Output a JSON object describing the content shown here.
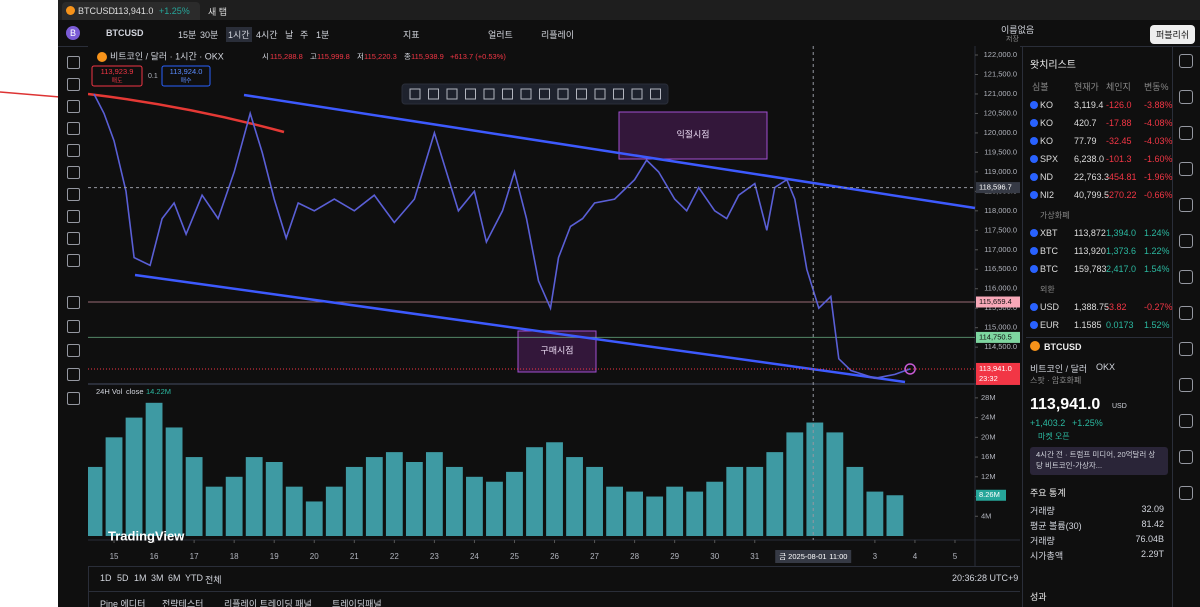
{
  "tab": {
    "symbol": "BTCUSD",
    "price": "113,941.0",
    "change": "+1.25%",
    "new_tab": "새 탭"
  },
  "toolbar": {
    "avatar": "B",
    "symbol": "BTCUSD",
    "intervals": [
      "15분",
      "30분",
      "1시간",
      "4시간",
      "날",
      "주",
      "1분"
    ],
    "indicators": "지표",
    "alerts": "얼러트",
    "replay": "리플레이",
    "layout": "이름없음",
    "save": "저장",
    "publish": "퍼블리쉬"
  },
  "chart_data": [
    {
      "type": "line",
      "title": "비트코인 / 달러 · 1시간 · OKX",
      "ohlc": {
        "o_label": "시",
        "o": "115,288.8",
        "h_label": "고",
        "h": "115,999.8",
        "l_label": "저",
        "l": "115,220.3",
        "c_label": "종",
        "c": "115,938.9",
        "change": "+613.7 (+0.53%)"
      },
      "sell": {
        "price": "113,923.9",
        "label": "매도"
      },
      "spread": "0.1",
      "buy": {
        "price": "113,924.0",
        "label": "매수"
      },
      "color": "#5a5fd6",
      "x": [
        -0.5,
        -0.25,
        0,
        0.3,
        0.5,
        0.9,
        1.2,
        1.5,
        1.8,
        2.2,
        2.6,
        3,
        3.4,
        3.7,
        4,
        4.3,
        4.6,
        5,
        5.5,
        6,
        6.5,
        7,
        7.5,
        8,
        8.3,
        8.6,
        9,
        9.3,
        9.7,
        10,
        10.3,
        10.6,
        10.9,
        11.1,
        11.4,
        11.7,
        12,
        12.5,
        13,
        13.3,
        13.6,
        14,
        14.3,
        14.6,
        15,
        15.3,
        15.6,
        16,
        16.3,
        16.5,
        16.8,
        17,
        17.3,
        17.6,
        17.9,
        18.1,
        18.4,
        18.7,
        19,
        19.5,
        19.88
      ],
      "values": [
        121000,
        120500,
        119800,
        118500,
        116800,
        116600,
        117800,
        118200,
        117400,
        118400,
        117800,
        119000,
        120500,
        119500,
        118300,
        117300,
        118200,
        118000,
        118300,
        118000,
        118400,
        117700,
        118300,
        120000,
        119000,
        118000,
        118500,
        117200,
        118000,
        119000,
        117800,
        116200,
        115500,
        116800,
        117600,
        117800,
        118200,
        118300,
        118800,
        119300,
        119000,
        118300,
        118000,
        118600,
        118000,
        117800,
        118400,
        118700,
        117500,
        118600,
        118800,
        118300,
        116500,
        115500,
        115800,
        114200,
        113900,
        113800,
        113700,
        113800,
        113941
      ],
      "xlim": [
        -0.65,
        21.5
      ],
      "ylim": [
        113580,
        122180
      ],
      "yticks": [
        {
          "value": 114500,
          "label": "114,500.0"
        },
        {
          "value": 115000,
          "label": "115,000.0"
        },
        {
          "value": 115500,
          "label": "115,500.0"
        },
        {
          "value": 116000,
          "label": "116,000.0"
        },
        {
          "value": 116500,
          "label": "116,500.0"
        },
        {
          "value": 117000,
          "label": "117,000.0"
        },
        {
          "value": 117500,
          "label": "117,500.0"
        },
        {
          "value": 118000,
          "label": "118,000.0"
        },
        {
          "value": 118500,
          "label": "118,500.0"
        },
        {
          "value": 119000,
          "label": "119,000.0"
        },
        {
          "value": 119500,
          "label": "119,500.0"
        },
        {
          "value": 120000,
          "label": "120,000.0"
        },
        {
          "value": 120500,
          "label": "120,500.0"
        },
        {
          "value": 121000,
          "label": "121,000.0"
        },
        {
          "value": 121500,
          "label": "121,500.0"
        },
        {
          "value": 122000,
          "label": "122,000.0"
        }
      ],
      "xticks": [
        {
          "value": 0,
          "label": "15"
        },
        {
          "value": 1,
          "label": "16"
        },
        {
          "value": 2,
          "label": "17"
        },
        {
          "value": 3,
          "label": "18"
        },
        {
          "value": 4,
          "label": "19"
        },
        {
          "value": 5,
          "label": "20"
        },
        {
          "value": 6,
          "label": "21"
        },
        {
          "value": 7,
          "label": "22"
        },
        {
          "value": 8,
          "label": "23"
        },
        {
          "value": 9,
          "label": "24"
        },
        {
          "value": 10,
          "label": "25"
        },
        {
          "value": 11,
          "label": "26"
        },
        {
          "value": 12,
          "label": "27"
        },
        {
          "value": 13,
          "label": "28"
        },
        {
          "value": 14,
          "label": "29"
        },
        {
          "value": 15,
          "label": "30"
        },
        {
          "value": 16,
          "label": "31"
        },
        {
          "value": 19,
          "label": "3"
        },
        {
          "value": 20,
          "label": "4"
        },
        {
          "value": 21,
          "label": "5"
        }
      ],
      "price_lines": [
        {
          "value": 115659.4,
          "label": "115,659.4",
          "color": "#f7a8b8"
        },
        {
          "value": 114750.5,
          "label": "114,750.5",
          "color": "#7ed6a0"
        }
      ],
      "crosshair": {
        "value": 118596.7,
        "label": "118,596.7",
        "x": 17.46,
        "date": "금 2025-08-01",
        "time": "11:00"
      },
      "last": {
        "value": 113941.0,
        "label": "113,941.0",
        "countdown": "23:32",
        "color": "#f23645"
      },
      "annotations": [
        {
          "label": "익절시점"
        },
        {
          "label": "구매시점"
        }
      ],
      "watermark": "TradingView"
    },
    {
      "type": "bar",
      "title": "24H Vol",
      "source": "close",
      "legend_value": "14.22M",
      "color": "#46b3bd",
      "x": [
        -0.5,
        0,
        0.5,
        1,
        1.5,
        2,
        2.5,
        3,
        3.5,
        4,
        4.5,
        5,
        5.5,
        6,
        6.5,
        7,
        7.5,
        8,
        8.5,
        9,
        9.5,
        10,
        10.5,
        11,
        11.5,
        12,
        12.5,
        13,
        13.5,
        14,
        14.5,
        15,
        15.5,
        16,
        16.5,
        17,
        17.5,
        18,
        18.5,
        19,
        19.5
      ],
      "values": [
        14,
        20,
        24,
        27,
        22,
        16,
        10,
        12,
        16,
        15,
        10,
        7,
        10,
        14,
        16,
        17,
        15,
        17,
        14,
        12,
        11,
        13,
        18,
        19,
        16,
        14,
        10,
        9,
        8,
        10,
        9,
        11,
        14,
        14,
        17,
        21,
        23,
        21,
        14,
        9,
        8.26
      ],
      "ylim": [
        0,
        30
      ],
      "yticks": [
        {
          "value": 4,
          "label": "4M"
        },
        {
          "value": 8,
          "label": "8M"
        },
        {
          "value": 12,
          "label": "12M"
        },
        {
          "value": 16,
          "label": "16M"
        },
        {
          "value": 20,
          "label": "20M"
        },
        {
          "value": 24,
          "label": "24M"
        },
        {
          "value": 28,
          "label": "28M"
        }
      ],
      "last": {
        "value": 8.26,
        "label": "8.26M"
      }
    }
  ],
  "bottom_bar": {
    "ranges": [
      "1D",
      "5D",
      "1M",
      "3M",
      "6M",
      "YTD",
      "전체"
    ],
    "clock": "20:36:28 UTC+9"
  },
  "bottom_tabs": [
    "Pine 에디터",
    "전략테스터",
    "리플레이 트레이딩 패널",
    "트레이딩패널"
  ],
  "watchlist": {
    "title": "왓치리스트",
    "columns": [
      "심볼",
      "현재가",
      "체인지",
      "변동%"
    ],
    "rows": [
      [
        "KO",
        "3,119.4",
        "-126.0",
        "-3.88%"
      ],
      [
        "KO",
        "420.7",
        "-17.88",
        "-4.08%"
      ],
      [
        "KO",
        "77.79",
        "-32.45",
        "-4.03%"
      ],
      [
        "SPX",
        "6,238.0",
        "-101.3",
        "-1.60%"
      ],
      [
        "ND",
        "22,763.3",
        "-454.81",
        "-1.96%"
      ],
      [
        "NI2",
        "40,799.5",
        "-270.22",
        "-0.66%"
      ]
    ],
    "sections": [
      {
        "name": "가상화폐",
        "rows": [
          [
            "XBT",
            "113,872",
            "1,394.0",
            "1.24%"
          ],
          [
            "BTC",
            "113,920",
            "1,373.6",
            "1.22%"
          ],
          [
            "BTC",
            "159,783",
            "2,417.0",
            "1.54%"
          ]
        ]
      },
      {
        "name": "외환",
        "rows": [
          [
            "USD",
            "1,388.75",
            "-3.82",
            "-0.27%"
          ],
          [
            "EUR",
            "1.1585",
            "0.0173",
            "1.52%"
          ]
        ]
      }
    ]
  },
  "details": {
    "symbol": "BTCUSD",
    "name": "비트코인 / 달러",
    "exchange": "OKX",
    "kind": "스팟 · 암호화폐",
    "price": "113,941.0",
    "currency": "USD",
    "change": "+1,403.2",
    "change_pct": "+1.25%",
    "status": "마켓 오픈",
    "news": "4시간 전 · 트럼프 미디어, 20억달러 상당 비트코인-가상자...",
    "stats_title": "주요 통계",
    "stats": [
      [
        "거래량",
        "32.09"
      ],
      [
        "평균 볼륨(30)",
        "81.42"
      ],
      [
        "거래량",
        "76.04B"
      ],
      [
        "시가총액",
        "2.29T"
      ]
    ],
    "performance": "성과"
  }
}
